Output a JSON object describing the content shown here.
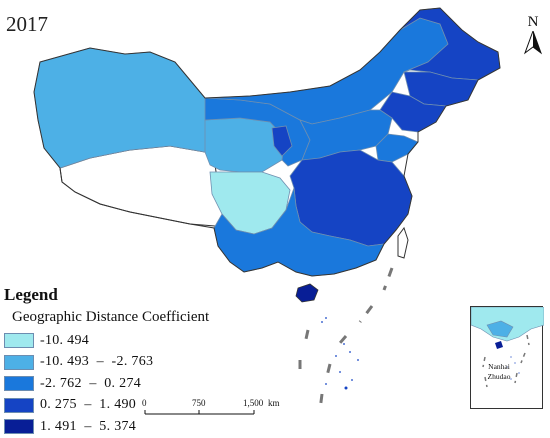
{
  "map": {
    "year": "2017",
    "north_label": "N",
    "legend": {
      "title": "Legend",
      "subtitle": "Geographic Distance Coefficient",
      "classes": [
        {
          "label": "-10. 494",
          "color": "#9fe9ee"
        },
        {
          "label": "-10. 493  –  -2. 763",
          "color": "#4db0e6"
        },
        {
          "label": "-2. 762  –  0. 274",
          "color": "#1a78dc"
        },
        {
          "label": "0. 275  –  1. 490",
          "color": "#1544c4"
        },
        {
          "label": "1. 491  –  5. 374",
          "color": "#081e96"
        }
      ]
    },
    "scale_bar": {
      "ticks": [
        "0",
        "750",
        "1,500"
      ],
      "unit": "km"
    },
    "inset": {
      "label_line1": "Nanhai",
      "label_line2": "Zhudao"
    },
    "colors": {
      "boundary": "#6f8fb0",
      "outline": "#333333",
      "dash": "#777777"
    }
  }
}
